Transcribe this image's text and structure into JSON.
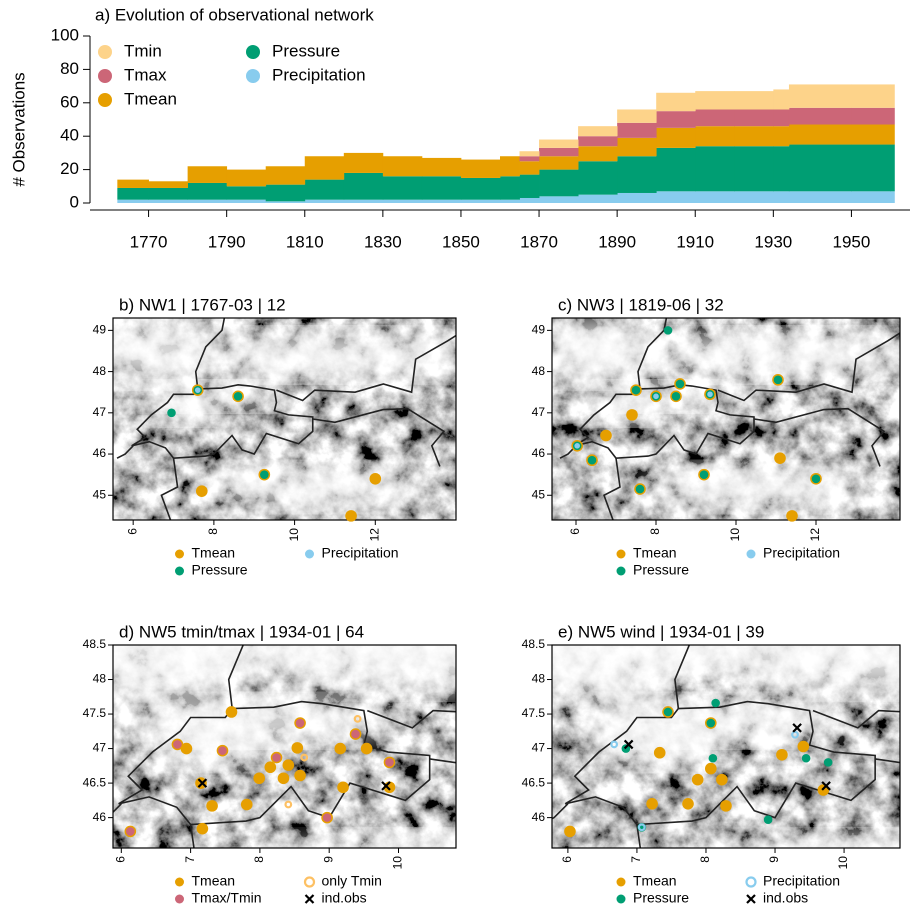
{
  "chart_data": [
    {
      "type": "area",
      "title": "a) Evolution of observational network",
      "y_label": "# Observations",
      "x": [
        1762,
        1770,
        1780,
        1790,
        1800,
        1810,
        1820,
        1830,
        1840,
        1850,
        1860,
        1865,
        1870,
        1880,
        1890,
        1900,
        1910,
        1920,
        1930,
        1934,
        1950,
        1960
      ],
      "series": [
        {
          "name": "Tmin",
          "color": "#fdd38a",
          "values": [
            0,
            0,
            0,
            0,
            0,
            0,
            0,
            0,
            0,
            0,
            0,
            3,
            5,
            6,
            8,
            11,
            11,
            11,
            12,
            14,
            14,
            14
          ]
        },
        {
          "name": "Tmax",
          "color": "#cc6677",
          "values": [
            0,
            0,
            0,
            0,
            0,
            0,
            0,
            0,
            0,
            0,
            0,
            3,
            5,
            6,
            9,
            10,
            10,
            10,
            10,
            10,
            10,
            10
          ]
        },
        {
          "name": "Tmean",
          "color": "#e69f00",
          "values": [
            5,
            4,
            10,
            10,
            11,
            14,
            12,
            12,
            11,
            11,
            12,
            8,
            8,
            9,
            11,
            12,
            12,
            12,
            12,
            12,
            12,
            12
          ]
        },
        {
          "name": "Pressure",
          "color": "#009e73",
          "values": [
            7,
            7,
            10,
            8,
            10,
            12,
            16,
            14,
            14,
            13,
            14,
            14,
            16,
            20,
            22,
            26,
            27,
            27,
            27,
            28,
            28,
            28
          ]
        },
        {
          "name": "Precipitation",
          "color": "#88ccee",
          "values": [
            2,
            2,
            2,
            2,
            1,
            2,
            2,
            2,
            2,
            2,
            2,
            3,
            4,
            5,
            6,
            7,
            7,
            7,
            7,
            7,
            7,
            7
          ]
        }
      ],
      "xlim": [
        1755,
        1965
      ],
      "xticks": [
        1770,
        1790,
        1810,
        1830,
        1850,
        1870,
        1890,
        1910,
        1930,
        1950
      ],
      "ylim": [
        0,
        100
      ],
      "yticks": [
        0,
        20,
        40,
        60,
        80,
        100
      ],
      "legend": "top-left"
    },
    {
      "type": "scatter",
      "title": "b) NW1 | 1767-03 | 12",
      "xlim": [
        5.5,
        14
      ],
      "xticks": [
        6,
        8,
        10,
        12
      ],
      "ylim": [
        44.4,
        49.3
      ],
      "yticks": [
        45,
        46,
        47,
        48,
        49
      ],
      "series": [
        {
          "name": "Tmean",
          "color": "#e69f00",
          "marker": "dot",
          "x": [
            7.6,
            8.6,
            9.25,
            7.7,
            12.0,
            11.4
          ],
          "y": [
            47.55,
            47.4,
            45.5,
            45.1,
            45.4,
            44.5
          ]
        },
        {
          "name": "Pressure",
          "color": "#009e73",
          "marker": "dot",
          "x": [
            7.6,
            8.6,
            9.25,
            6.95
          ],
          "y": [
            47.55,
            47.4,
            45.5,
            47.0
          ]
        },
        {
          "name": "Precipitation",
          "color": "#88ccee",
          "marker": "dot",
          "x": [
            7.6
          ],
          "y": [
            47.55
          ]
        }
      ]
    },
    {
      "type": "scatter",
      "title": "c) NW3 | 1819-06 | 32",
      "xlim": [
        5.4,
        14.1
      ],
      "xticks": [
        6,
        8,
        10,
        12
      ],
      "ylim": [
        44.4,
        49.3
      ],
      "yticks": [
        45,
        46,
        47,
        48,
        49
      ],
      "series": [
        {
          "name": "Tmean",
          "color": "#e69f00",
          "marker": "dot",
          "x": [
            6.75,
            6.03,
            6.4,
            7.6,
            7.4,
            7.5,
            8.6,
            8.5,
            11.05,
            11.1,
            9.2,
            12.0,
            11.4,
            8.0,
            9.35
          ],
          "y": [
            46.45,
            46.2,
            45.85,
            45.15,
            46.95,
            47.55,
            47.7,
            47.4,
            47.8,
            45.9,
            45.5,
            45.4,
            44.5,
            47.4,
            47.45
          ]
        },
        {
          "name": "Pressure",
          "color": "#009e73",
          "marker": "dot",
          "x": [
            8.3,
            8.6,
            8.5,
            7.5,
            11.05,
            9.2,
            12.0,
            6.4,
            6.03,
            7.6,
            8.0,
            9.35
          ],
          "y": [
            49.0,
            47.7,
            47.4,
            47.55,
            47.8,
            45.5,
            45.4,
            45.85,
            46.2,
            45.15,
            47.4,
            47.45
          ]
        },
        {
          "name": "Precipitation",
          "color": "#88ccee",
          "marker": "dot",
          "x": [
            8.0,
            9.35,
            6.03
          ],
          "y": [
            47.4,
            47.45,
            46.2
          ]
        }
      ]
    },
    {
      "type": "scatter",
      "title": "d) NW5 tmin/tmax | 1934-01 | 64",
      "xlim": [
        5.88,
        10.83
      ],
      "xticks": [
        6,
        7,
        8,
        9,
        10
      ],
      "ylim": [
        45.56,
        48.5
      ],
      "yticks": [
        46,
        46.5,
        47,
        47.5,
        48,
        48.5
      ],
      "series": [
        {
          "name": "Tmean",
          "color": "#e69f00",
          "marker": "dot",
          "x": [
            6.94,
            7.59,
            7.15,
            7.31,
            7.17,
            7.81,
            7.99,
            8.15,
            8.34,
            8.41,
            8.54,
            8.58,
            9.16,
            9.2,
            9.54,
            9.87,
            6.13,
            6.81,
            7.46,
            8.24,
            8.58,
            9.38,
            8.97,
            9.87
          ],
          "y": [
            47.0,
            47.53,
            46.5,
            46.17,
            45.84,
            46.19,
            46.57,
            46.73,
            46.57,
            46.76,
            47.01,
            46.61,
            47.0,
            46.44,
            47.0,
            46.44,
            45.8,
            47.06,
            46.97,
            46.87,
            47.37,
            47.21,
            46.0,
            46.8
          ]
        },
        {
          "name": "Tmax/Tmin",
          "color": "#cc6677",
          "marker": "dot",
          "x": [
            6.13,
            6.81,
            7.46,
            8.24,
            8.58,
            9.38,
            8.97,
            9.87
          ],
          "y": [
            45.8,
            47.06,
            46.97,
            46.87,
            47.37,
            47.21,
            46.0,
            46.8
          ]
        },
        {
          "name": "only Tmin",
          "color": "#fdc063",
          "marker": "ring",
          "x": [
            8.41,
            8.64,
            9.41
          ],
          "y": [
            46.19,
            46.87,
            47.43
          ]
        },
        {
          "name": "ind.obs",
          "color": "#000000",
          "marker": "cross",
          "x": [
            7.17,
            9.82
          ],
          "y": [
            46.5,
            46.46
          ]
        }
      ]
    },
    {
      "type": "scatter",
      "title": "e) NW5 wind | 1934-01 | 39",
      "xlim": [
        5.77,
        10.81
      ],
      "xticks": [
        6,
        7,
        8,
        9,
        10
      ],
      "ylim": [
        45.56,
        48.5
      ],
      "yticks": [
        46,
        46.5,
        47,
        47.5,
        48,
        48.5
      ],
      "series": [
        {
          "name": "Tmean",
          "color": "#e69f00",
          "marker": "dot",
          "x": [
            6.03,
            7.33,
            7.45,
            7.22,
            7.74,
            7.88,
            8.07,
            8.23,
            8.29,
            8.07,
            9.1,
            9.41,
            9.7
          ],
          "y": [
            45.8,
            46.94,
            47.53,
            46.2,
            46.2,
            46.55,
            46.71,
            46.55,
            46.17,
            47.37,
            46.91,
            47.03,
            46.4
          ]
        },
        {
          "name": "Pressure",
          "color": "#009e73",
          "marker": "dot",
          "x": [
            6.84,
            7.07,
            8.14,
            8.1,
            9.45,
            9.77,
            8.9,
            7.45,
            8.07
          ],
          "y": [
            47.0,
            45.86,
            47.66,
            46.86,
            46.86,
            46.8,
            45.97,
            47.53,
            47.37
          ]
        },
        {
          "name": "Precipitation",
          "color": "#88ccee",
          "marker": "ring",
          "x": [
            6.67,
            9.29,
            7.07
          ],
          "y": [
            47.06,
            47.2,
            45.86
          ]
        },
        {
          "name": "ind.obs",
          "color": "#000000",
          "marker": "cross",
          "x": [
            6.88,
            9.32,
            9.74
          ],
          "y": [
            47.06,
            47.3,
            46.46
          ]
        }
      ]
    }
  ]
}
